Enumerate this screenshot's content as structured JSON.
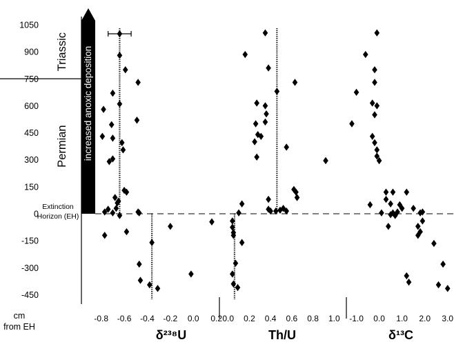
{
  "chart_data": {
    "type": "scatter",
    "y_axis": {
      "ylim": [
        -480,
        1080
      ],
      "ticks": [
        1050,
        900,
        750,
        600,
        450,
        300,
        150,
        0,
        -150,
        -300,
        -450
      ],
      "unit_label": [
        "cm",
        "from EH"
      ]
    },
    "periods": [
      {
        "label": "Triassic",
        "range": [
          750,
          1080
        ]
      },
      {
        "label": "Permian",
        "range": [
          -480,
          750
        ]
      }
    ],
    "extinction_label": [
      "Extinction",
      "Horizon (EH)"
    ],
    "arrow_label": "increased anoxic deposition",
    "panels": [
      {
        "xlabel": "δ²³⁸U",
        "xlim": [
          -0.87,
          0.22
        ],
        "ticks": [
          -0.8,
          -0.6,
          -0.4,
          -0.2,
          0.0,
          0.2
        ],
        "tick_labels": [
          "-0.8",
          "-0.6",
          "-0.4",
          "-0.2",
          "0.0",
          "0.2"
        ],
        "means": [
          {
            "x": -0.64,
            "from": 0,
            "to": 1030
          },
          {
            "x": -0.36,
            "from": -480,
            "to": 0
          }
        ],
        "error_bar": {
          "y": 1000,
          "x": -0.64,
          "xerr": 0.1
        },
        "points": [
          [
            -0.64,
            1000
          ],
          [
            -0.64,
            880
          ],
          [
            -0.59,
            800
          ],
          [
            -0.7,
            670
          ],
          [
            -0.64,
            610
          ],
          [
            -0.78,
            580
          ],
          [
            -0.71,
            495
          ],
          [
            -0.48,
            730
          ],
          [
            -0.49,
            520
          ],
          [
            -0.79,
            430
          ],
          [
            -0.7,
            420
          ],
          [
            -0.62,
            395
          ],
          [
            -0.61,
            355
          ],
          [
            -0.73,
            290
          ],
          [
            -0.7,
            305
          ],
          [
            -0.58,
            120
          ],
          [
            -0.6,
            130
          ],
          [
            -0.68,
            90
          ],
          [
            -0.65,
            70
          ],
          [
            -0.66,
            60
          ],
          [
            -0.67,
            30
          ],
          [
            -0.74,
            25
          ],
          [
            -0.77,
            10
          ],
          [
            -0.7,
            5
          ],
          [
            -0.48,
            10
          ],
          [
            -0.47,
            5
          ],
          [
            -0.64,
            -10
          ],
          [
            -0.77,
            -120
          ],
          [
            -0.58,
            -100
          ],
          [
            -0.2,
            -70
          ],
          [
            0.16,
            -45
          ],
          [
            -0.36,
            -160
          ],
          [
            -0.47,
            -280
          ],
          [
            -0.38,
            -395
          ],
          [
            -0.46,
            -370
          ],
          [
            -0.31,
            -415
          ],
          [
            -0.02,
            -335
          ]
        ]
      },
      {
        "xlabel": "Th/U",
        "xlim": [
          -0.05,
          1.05
        ],
        "ticks": [
          0.0,
          0.2,
          0.4,
          0.6,
          0.8,
          1.0
        ],
        "tick_labels": [
          "0.0",
          "0.2",
          "0.4",
          "0.6",
          "0.8",
          "1.0"
        ],
        "means": [
          {
            "x": 0.46,
            "from": 0,
            "to": 1030
          },
          {
            "x": 0.06,
            "from": -480,
            "to": 0
          }
        ],
        "points": [
          [
            0.35,
            1005
          ],
          [
            0.16,
            885
          ],
          [
            0.38,
            810
          ],
          [
            0.46,
            680
          ],
          [
            0.63,
            730
          ],
          [
            0.27,
            615
          ],
          [
            0.35,
            600
          ],
          [
            0.36,
            555
          ],
          [
            0.26,
            500
          ],
          [
            0.35,
            510
          ],
          [
            0.28,
            440
          ],
          [
            0.31,
            430
          ],
          [
            0.25,
            400
          ],
          [
            0.27,
            315
          ],
          [
            0.55,
            370
          ],
          [
            0.92,
            295
          ],
          [
            0.62,
            135
          ],
          [
            0.64,
            120
          ],
          [
            0.65,
            90
          ],
          [
            0.38,
            80
          ],
          [
            0.38,
            25
          ],
          [
            0.4,
            15
          ],
          [
            0.45,
            15
          ],
          [
            0.49,
            20
          ],
          [
            0.52,
            30
          ],
          [
            0.55,
            15
          ],
          [
            0.13,
            55
          ],
          [
            0.1,
            5
          ],
          [
            0.04,
            -40
          ],
          [
            0.04,
            -75
          ],
          [
            0.05,
            -105
          ],
          [
            0.05,
            -120
          ],
          [
            0.13,
            -160
          ],
          [
            0.07,
            -275
          ],
          [
            0.04,
            -335
          ],
          [
            0.05,
            -390
          ],
          [
            0.09,
            -410
          ]
        ]
      },
      {
        "xlabel": "δ¹³C",
        "xlim": [
          -1.35,
          3.25
        ],
        "ticks": [
          -1.0,
          0.0,
          1.0,
          2.0,
          3.0
        ],
        "tick_labels": [
          "-1.0",
          "0.0",
          "1.0",
          "2.0",
          "3.0"
        ],
        "points": [
          [
            -0.1,
            1005
          ],
          [
            -0.6,
            885
          ],
          [
            -0.2,
            800
          ],
          [
            -0.2,
            730
          ],
          [
            -1.0,
            675
          ],
          [
            -0.3,
            615
          ],
          [
            -0.1,
            600
          ],
          [
            -0.2,
            550
          ],
          [
            -1.2,
            500
          ],
          [
            -0.3,
            430
          ],
          [
            -0.2,
            395
          ],
          [
            -0.1,
            355
          ],
          [
            -0.1,
            320
          ],
          [
            0.0,
            295
          ],
          [
            0.3,
            120
          ],
          [
            0.6,
            120
          ],
          [
            1.2,
            120
          ],
          [
            0.3,
            80
          ],
          [
            0.5,
            55
          ],
          [
            0.9,
            50
          ],
          [
            -0.4,
            50
          ],
          [
            1.0,
            30
          ],
          [
            1.5,
            30
          ],
          [
            0.8,
            10
          ],
          [
            0.6,
            5
          ],
          [
            0.1,
            5
          ],
          [
            1.8,
            5
          ],
          [
            1.9,
            10
          ],
          [
            0.5,
            -5
          ],
          [
            0.7,
            -10
          ],
          [
            1.9,
            -40
          ],
          [
            1.7,
            -70
          ],
          [
            0.4,
            -70
          ],
          [
            1.8,
            -100
          ],
          [
            1.7,
            -120
          ],
          [
            2.4,
            -165
          ],
          [
            2.8,
            -280
          ],
          [
            1.2,
            -345
          ],
          [
            1.3,
            -380
          ],
          [
            2.6,
            -395
          ],
          [
            3.0,
            -415
          ]
        ]
      }
    ]
  }
}
